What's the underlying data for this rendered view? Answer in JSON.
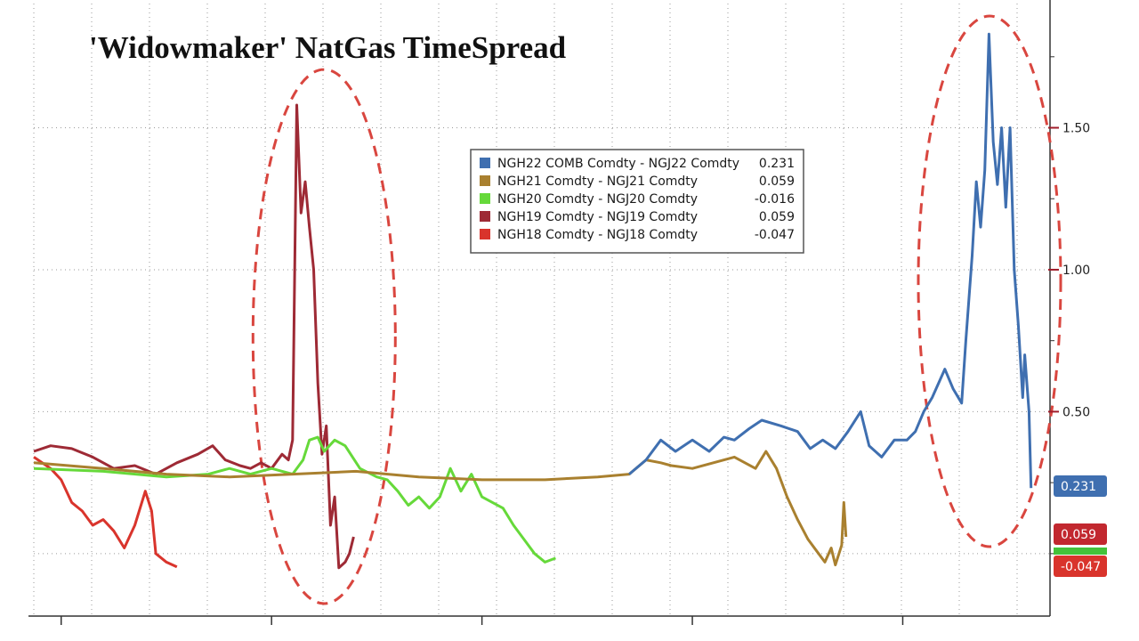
{
  "chart_data": {
    "type": "line",
    "title": "'Widowmaker' NatGas TimeSpread",
    "xlabel": "",
    "ylabel": "",
    "xlim": [
      2016.87,
      2021.7
    ],
    "ylim": [
      -0.22,
      1.95
    ],
    "y_ticks": [
      0.5,
      1.0,
      1.5
    ],
    "y_tick_labels": [
      "0.50",
      "1.00",
      "1.50"
    ],
    "grid": true,
    "y_axis_side": "right",
    "legend_position": "top-center",
    "annotations": [
      "red dashed ellipse around NGH19 spike (late 2018)",
      "red dashed ellipse around NGH22 spike (early 2021)"
    ],
    "series": [
      {
        "name": "NGH22 COMB Comdty - NGJ22 Comdty",
        "last_value": "0.231",
        "color": "#3f6fb0",
        "points": [
          [
            2019.7,
            0.28
          ],
          [
            2019.78,
            0.33
          ],
          [
            2019.85,
            0.4
          ],
          [
            2019.92,
            0.36
          ],
          [
            2020.0,
            0.4
          ],
          [
            2020.08,
            0.36
          ],
          [
            2020.15,
            0.41
          ],
          [
            2020.2,
            0.4
          ],
          [
            2020.27,
            0.44
          ],
          [
            2020.33,
            0.47
          ],
          [
            2020.42,
            0.45
          ],
          [
            2020.5,
            0.43
          ],
          [
            2020.56,
            0.37
          ],
          [
            2020.62,
            0.4
          ],
          [
            2020.68,
            0.37
          ],
          [
            2020.74,
            0.43
          ],
          [
            2020.8,
            0.5
          ],
          [
            2020.84,
            0.38
          ],
          [
            2020.9,
            0.34
          ],
          [
            2020.96,
            0.4
          ],
          [
            2021.02,
            0.4
          ],
          [
            2021.06,
            0.43
          ],
          [
            2021.1,
            0.5
          ],
          [
            2021.14,
            0.55
          ],
          [
            2021.2,
            0.65
          ],
          [
            2021.24,
            0.58
          ],
          [
            2021.28,
            0.53
          ],
          [
            2021.3,
            0.75
          ],
          [
            2021.33,
            1.05
          ],
          [
            2021.35,
            1.31
          ],
          [
            2021.37,
            1.15
          ],
          [
            2021.39,
            1.35
          ],
          [
            2021.41,
            1.83
          ],
          [
            2021.43,
            1.45
          ],
          [
            2021.45,
            1.3
          ],
          [
            2021.47,
            1.5
          ],
          [
            2021.49,
            1.22
          ],
          [
            2021.51,
            1.5
          ],
          [
            2021.53,
            1.0
          ],
          [
            2021.55,
            0.8
          ],
          [
            2021.57,
            0.55
          ],
          [
            2021.58,
            0.7
          ],
          [
            2021.6,
            0.5
          ],
          [
            2021.61,
            0.231
          ]
        ]
      },
      {
        "name": "NGH21 Comdty - NGJ21 Comdty",
        "last_value": "0.059",
        "color": "#a9802f",
        "points": [
          [
            2016.87,
            0.32
          ],
          [
            2017.2,
            0.3
          ],
          [
            2017.5,
            0.28
          ],
          [
            2017.8,
            0.27
          ],
          [
            2018.1,
            0.28
          ],
          [
            2018.4,
            0.29
          ],
          [
            2018.7,
            0.27
          ],
          [
            2019.0,
            0.26
          ],
          [
            2019.3,
            0.26
          ],
          [
            2019.55,
            0.27
          ],
          [
            2019.7,
            0.28
          ],
          [
            2019.78,
            0.33
          ],
          [
            2019.85,
            0.32
          ],
          [
            2019.9,
            0.31
          ],
          [
            2020.0,
            0.3
          ],
          [
            2020.1,
            0.32
          ],
          [
            2020.2,
            0.34
          ],
          [
            2020.3,
            0.3
          ],
          [
            2020.35,
            0.36
          ],
          [
            2020.4,
            0.3
          ],
          [
            2020.45,
            0.2
          ],
          [
            2020.5,
            0.12
          ],
          [
            2020.55,
            0.05
          ],
          [
            2020.6,
            0.0
          ],
          [
            2020.63,
            -0.03
          ],
          [
            2020.66,
            0.02
          ],
          [
            2020.68,
            -0.04
          ],
          [
            2020.71,
            0.03
          ],
          [
            2020.72,
            0.18
          ],
          [
            2020.73,
            0.059
          ]
        ]
      },
      {
        "name": "NGH20 Comdty - NGJ20 Comdty",
        "last_value": "-0.016",
        "color": "#66d93a",
        "points": [
          [
            2016.87,
            0.3
          ],
          [
            2017.2,
            0.29
          ],
          [
            2017.5,
            0.27
          ],
          [
            2017.7,
            0.28
          ],
          [
            2017.8,
            0.3
          ],
          [
            2017.9,
            0.28
          ],
          [
            2018.0,
            0.3
          ],
          [
            2018.1,
            0.28
          ],
          [
            2018.15,
            0.33
          ],
          [
            2018.18,
            0.4
          ],
          [
            2018.22,
            0.41
          ],
          [
            2018.25,
            0.36
          ],
          [
            2018.3,
            0.4
          ],
          [
            2018.35,
            0.38
          ],
          [
            2018.42,
            0.3
          ],
          [
            2018.5,
            0.27
          ],
          [
            2018.55,
            0.26
          ],
          [
            2018.6,
            0.22
          ],
          [
            2018.65,
            0.17
          ],
          [
            2018.7,
            0.2
          ],
          [
            2018.75,
            0.16
          ],
          [
            2018.8,
            0.2
          ],
          [
            2018.85,
            0.3
          ],
          [
            2018.9,
            0.22
          ],
          [
            2018.95,
            0.28
          ],
          [
            2019.0,
            0.2
          ],
          [
            2019.1,
            0.16
          ],
          [
            2019.15,
            0.1
          ],
          [
            2019.2,
            0.05
          ],
          [
            2019.25,
            0.0
          ],
          [
            2019.3,
            -0.03
          ],
          [
            2019.35,
            -0.016
          ]
        ]
      },
      {
        "name": "NGH19 Comdty - NGJ19 Comdty",
        "last_value": "0.059",
        "color": "#9e2a35",
        "points": [
          [
            2016.87,
            0.36
          ],
          [
            2016.95,
            0.38
          ],
          [
            2017.05,
            0.37
          ],
          [
            2017.15,
            0.34
          ],
          [
            2017.25,
            0.3
          ],
          [
            2017.35,
            0.31
          ],
          [
            2017.45,
            0.28
          ],
          [
            2017.55,
            0.32
          ],
          [
            2017.65,
            0.35
          ],
          [
            2017.72,
            0.38
          ],
          [
            2017.78,
            0.33
          ],
          [
            2017.85,
            0.31
          ],
          [
            2017.9,
            0.3
          ],
          [
            2017.95,
            0.32
          ],
          [
            2018.0,
            0.3
          ],
          [
            2018.05,
            0.35
          ],
          [
            2018.08,
            0.33
          ],
          [
            2018.1,
            0.4
          ],
          [
            2018.12,
            1.58
          ],
          [
            2018.14,
            1.2
          ],
          [
            2018.16,
            1.31
          ],
          [
            2018.18,
            1.15
          ],
          [
            2018.2,
            1.0
          ],
          [
            2018.22,
            0.6
          ],
          [
            2018.24,
            0.35
          ],
          [
            2018.26,
            0.45
          ],
          [
            2018.28,
            0.1
          ],
          [
            2018.3,
            0.2
          ],
          [
            2018.32,
            -0.05
          ],
          [
            2018.35,
            -0.03
          ],
          [
            2018.37,
            0.0
          ],
          [
            2018.39,
            0.059
          ]
        ]
      },
      {
        "name": "NGH18 Comdty - NGJ18 Comdty",
        "last_value": "-0.047",
        "color": "#d9342c",
        "points": [
          [
            2016.87,
            0.34
          ],
          [
            2016.95,
            0.3
          ],
          [
            2017.0,
            0.26
          ],
          [
            2017.05,
            0.18
          ],
          [
            2017.1,
            0.15
          ],
          [
            2017.15,
            0.1
          ],
          [
            2017.2,
            0.12
          ],
          [
            2017.25,
            0.08
          ],
          [
            2017.3,
            0.02
          ],
          [
            2017.35,
            0.1
          ],
          [
            2017.4,
            0.22
          ],
          [
            2017.43,
            0.15
          ],
          [
            2017.45,
            0.0
          ],
          [
            2017.5,
            -0.03
          ],
          [
            2017.55,
            -0.047
          ]
        ]
      }
    ],
    "badges": [
      {
        "label": "0.231",
        "color": "#3f6fb0",
        "value": 0.231
      },
      {
        "label": "0.059",
        "color": "#c2282f",
        "value": 0.059
      },
      {
        "label": "-0.047",
        "color": "#d9342c",
        "value": -0.047
      }
    ]
  }
}
